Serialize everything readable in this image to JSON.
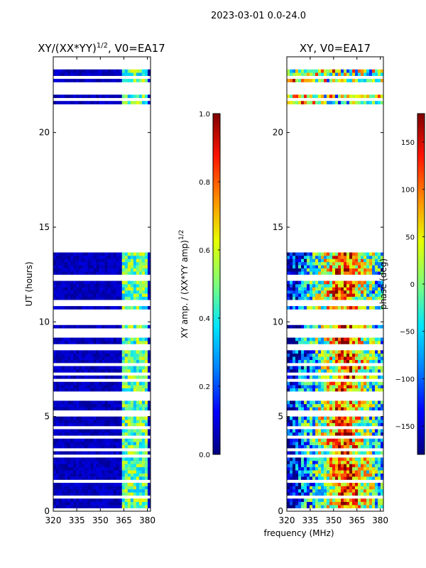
{
  "suptitle": "2023-03-01 0.0-24.0",
  "colors": {
    "jet": [
      "#00007f",
      "#0000ff",
      "#0080ff",
      "#00e5ff",
      "#7dff7a",
      "#e5ff00",
      "#ff8c00",
      "#ff1400",
      "#7f0000"
    ],
    "frame": "#000000",
    "background": "#ffffff"
  },
  "chart_data": [
    {
      "type": "heatmap",
      "title": "XY/(XX*YY)",
      "title_sup": "1/2",
      "title_suffix": ", V0=EA17",
      "xlabel": "",
      "ylabel": "UT (hours)",
      "xlim": [
        320,
        382
      ],
      "ylim": [
        0,
        24
      ],
      "xticks": [
        320,
        335,
        350,
        365,
        380
      ],
      "yticks": [
        0,
        5,
        10,
        15,
        20
      ],
      "quantity": "normalized amplitude",
      "data_gaps_hours": [
        [
          13.6,
          21.5
        ],
        [
          10.2,
          10.6
        ],
        [
          5.9,
          6.1
        ],
        [
          5.2,
          5.3
        ]
      ],
      "high_value_band_mhz": [
        363,
        380
      ],
      "colorbar": {
        "label": "XY amp. / (XX*YY amp)",
        "label_sup": "1/2",
        "range": [
          0.0,
          1.0
        ],
        "ticks": [
          "0.0",
          "0.2",
          "0.4",
          "0.6",
          "0.8",
          "1.0"
        ]
      }
    },
    {
      "type": "heatmap",
      "title": "XY, V0=EA17",
      "xlabel": "frequency (MHz)",
      "ylabel": "",
      "xlim": [
        320,
        382
      ],
      "ylim": [
        0,
        24
      ],
      "xticks": [
        320,
        335,
        350,
        365,
        380
      ],
      "yticks": [
        0,
        5,
        10,
        15,
        20
      ],
      "quantity": "phase (deg)",
      "data_gaps_hours": [
        [
          13.6,
          21.5
        ],
        [
          10.2,
          10.6
        ],
        [
          5.9,
          6.1
        ],
        [
          5.2,
          5.3
        ]
      ],
      "colorbar": {
        "label": "phase (deg)",
        "range": [
          -180,
          180
        ],
        "ticks": [
          "-150",
          "-100",
          "-50",
          "0",
          "50",
          "100",
          "150"
        ]
      }
    }
  ]
}
